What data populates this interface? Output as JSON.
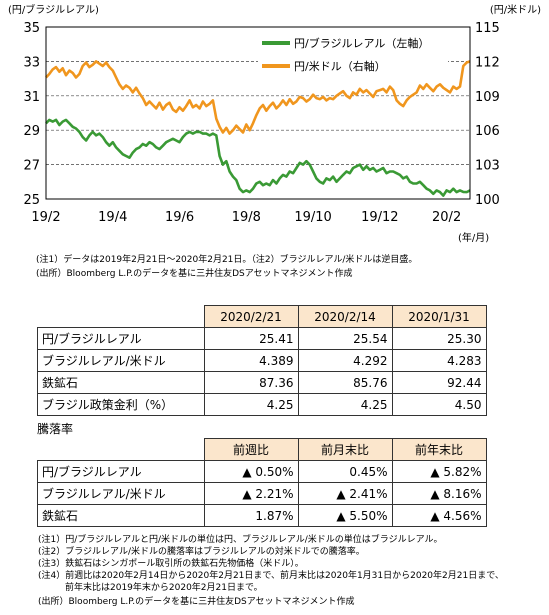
{
  "chart_data": {
    "type": "line",
    "left_axis_label": "(円/ブラジルレアル)",
    "right_axis_label": "(円/米ドル)",
    "x_unit_label": "(年/月)",
    "x_ticks": [
      "19/2",
      "19/4",
      "19/6",
      "19/8",
      "19/10",
      "19/12",
      "20/2"
    ],
    "y_left_ticks": [
      "35",
      "33",
      "31",
      "29",
      "27",
      "25"
    ],
    "y_right_ticks": [
      "115",
      "112",
      "109",
      "106",
      "103",
      "100"
    ],
    "ylim_left": [
      25,
      35
    ],
    "ylim_right": [
      100,
      115
    ],
    "y_right_inverted": false,
    "gridlines": true,
    "legend_position": "top-right",
    "series": [
      {
        "name": "円/ブラジルレアル（左軸）",
        "axis": "left",
        "color": "#3a9a35",
        "x": [
          0.0,
          0.1,
          0.2,
          0.3,
          0.4,
          0.5,
          0.6,
          0.7,
          0.8,
          0.9,
          1.0,
          1.1,
          1.2,
          1.3,
          1.4,
          1.5,
          1.6,
          1.7,
          1.8,
          1.9,
          2.0,
          2.1,
          2.2,
          2.3,
          2.4,
          2.5,
          2.6,
          2.7,
          2.8,
          2.9,
          3.0,
          3.1,
          3.2,
          3.3,
          3.4,
          3.5,
          3.6,
          3.7,
          3.8,
          3.9,
          4.0,
          4.1,
          4.2,
          4.3,
          4.4,
          4.5,
          4.6,
          4.7,
          4.8,
          4.9,
          5.0,
          5.1,
          5.2,
          5.3,
          5.4,
          5.5,
          5.6,
          5.7,
          5.8,
          5.9,
          6.0,
          6.1,
          6.2,
          6.3,
          6.4,
          6.5,
          6.6,
          6.7,
          6.8,
          6.9,
          7.0,
          7.1,
          7.2,
          7.3,
          7.4,
          7.5,
          7.6,
          7.7,
          7.8,
          7.9,
          8.0,
          8.1,
          8.2,
          8.3,
          8.4,
          8.5,
          8.6,
          8.7,
          8.8,
          8.9,
          9.0,
          9.1,
          9.2,
          9.3,
          9.4,
          9.5,
          9.6,
          9.7,
          9.8,
          9.9,
          10.0,
          10.1,
          10.2,
          10.3,
          10.4,
          10.5,
          10.6,
          10.7,
          10.8,
          10.9,
          11.0,
          11.1,
          11.2,
          11.3,
          11.4,
          11.5,
          11.6,
          11.7,
          11.8,
          11.9,
          12.0,
          12.1,
          12.2,
          12.3,
          12.4,
          12.5,
          12.6,
          12.7
        ],
        "values": [
          29.4,
          29.6,
          29.5,
          29.6,
          29.3,
          29.5,
          29.6,
          29.4,
          29.2,
          29.1,
          28.9,
          28.6,
          28.4,
          28.7,
          28.9,
          28.7,
          28.8,
          28.6,
          28.3,
          28.1,
          28.3,
          28.0,
          27.8,
          27.6,
          27.5,
          27.4,
          27.7,
          27.9,
          28.0,
          28.2,
          28.1,
          28.3,
          28.2,
          28.0,
          27.9,
          28.1,
          28.3,
          28.4,
          28.5,
          28.4,
          28.3,
          28.6,
          28.8,
          28.9,
          28.8,
          28.9,
          28.9,
          28.8,
          28.8,
          28.7,
          28.8,
          28.7,
          27.5,
          27.0,
          27.2,
          26.6,
          26.3,
          26.1,
          25.6,
          25.4,
          25.5,
          25.4,
          25.6,
          25.9,
          26.0,
          25.8,
          25.9,
          25.8,
          26.1,
          25.9,
          26.2,
          26.4,
          26.3,
          26.6,
          26.5,
          26.8,
          27.1,
          27.0,
          27.2,
          27.0,
          26.6,
          26.2,
          26.0,
          25.9,
          26.2,
          26.1,
          26.3,
          26.0,
          26.2,
          26.4,
          26.6,
          26.5,
          26.8,
          26.9,
          27.0,
          26.7,
          26.9,
          26.7,
          26.8,
          26.6,
          26.7,
          26.8,
          26.5,
          26.6,
          26.6,
          26.5,
          26.4,
          26.2,
          26.3,
          26.0,
          25.9,
          25.9,
          26.0,
          25.8,
          25.6,
          25.5,
          25.3,
          25.5,
          25.4,
          25.2,
          25.5,
          25.4,
          25.6,
          25.4,
          25.5,
          25.41,
          25.4,
          25.5
        ]
      },
      {
        "name": "円/米ドル（右軸）",
        "axis": "right",
        "color": "#f0961e",
        "x": [
          0.0,
          0.1,
          0.2,
          0.3,
          0.4,
          0.5,
          0.6,
          0.7,
          0.8,
          0.9,
          1.0,
          1.1,
          1.2,
          1.3,
          1.4,
          1.5,
          1.6,
          1.7,
          1.8,
          1.9,
          2.0,
          2.1,
          2.2,
          2.3,
          2.4,
          2.5,
          2.6,
          2.7,
          2.8,
          2.9,
          3.0,
          3.1,
          3.2,
          3.3,
          3.4,
          3.5,
          3.6,
          3.7,
          3.8,
          3.9,
          4.0,
          4.1,
          4.2,
          4.3,
          4.4,
          4.5,
          4.6,
          4.7,
          4.8,
          4.9,
          5.0,
          5.1,
          5.2,
          5.3,
          5.4,
          5.5,
          5.6,
          5.7,
          5.8,
          5.9,
          6.0,
          6.1,
          6.2,
          6.3,
          6.4,
          6.5,
          6.6,
          6.7,
          6.8,
          6.9,
          7.0,
          7.1,
          7.2,
          7.3,
          7.4,
          7.5,
          7.6,
          7.7,
          7.8,
          7.9,
          8.0,
          8.1,
          8.2,
          8.3,
          8.4,
          8.5,
          8.6,
          8.7,
          8.8,
          8.9,
          9.0,
          9.1,
          9.2,
          9.3,
          9.4,
          9.5,
          9.6,
          9.7,
          9.8,
          9.9,
          10.0,
          10.1,
          10.2,
          10.3,
          10.4,
          10.5,
          10.6,
          10.7,
          10.8,
          10.9,
          11.0,
          11.1,
          11.2,
          11.3,
          11.4,
          11.5,
          11.6,
          11.7,
          11.8,
          11.9,
          12.0,
          12.1,
          12.2,
          12.3,
          12.4,
          12.5,
          12.6,
          12.7
        ],
        "values": [
          110.6,
          110.9,
          111.3,
          111.5,
          111.1,
          111.4,
          110.8,
          111.2,
          111.0,
          110.6,
          110.9,
          111.6,
          111.9,
          111.5,
          111.7,
          112.0,
          111.8,
          111.6,
          111.9,
          111.5,
          111.2,
          110.6,
          110.0,
          109.6,
          109.9,
          109.7,
          109.3,
          109.7,
          109.2,
          108.8,
          108.2,
          108.5,
          108.2,
          107.9,
          108.4,
          107.8,
          108.2,
          108.4,
          107.8,
          107.6,
          108.0,
          107.7,
          108.1,
          108.6,
          108.0,
          108.2,
          107.9,
          108.5,
          108.1,
          108.3,
          108.6,
          107.0,
          106.3,
          105.8,
          106.2,
          105.7,
          106.0,
          106.4,
          106.1,
          105.8,
          106.5,
          106.0,
          106.6,
          107.3,
          107.9,
          108.2,
          107.7,
          108.1,
          108.4,
          107.9,
          108.2,
          108.6,
          108.2,
          108.7,
          108.3,
          108.5,
          108.9,
          108.8,
          108.5,
          108.7,
          109.1,
          108.8,
          108.7,
          108.9,
          108.6,
          108.8,
          108.7,
          109.0,
          109.2,
          109.4,
          109.0,
          108.8,
          109.3,
          109.1,
          109.6,
          109.3,
          109.5,
          109.2,
          108.9,
          109.4,
          109.5,
          109.6,
          109.3,
          109.8,
          109.5,
          108.6,
          108.3,
          108.1,
          108.6,
          108.9,
          109.1,
          109.3,
          109.9,
          109.6,
          110.0,
          109.7,
          109.4,
          109.8,
          110.0,
          109.7,
          109.5,
          109.3,
          109.8,
          109.6,
          109.8,
          111.6,
          111.9,
          112.0
        ]
      }
    ]
  },
  "chart_notes": {
    "note1": "(注1）データは2019年2月21日～2020年2月21日。（注2）ブラジルレアル/米ドルは逆目盛。",
    "source": "(出所）Bloomberg L.P.のデータを基に三井住友DSアセットマネジメント作成"
  },
  "table1": {
    "headers": [
      "2020/2/21",
      "2020/2/14",
      "2020/1/31"
    ],
    "rows": [
      {
        "label": "円/ブラジルレアル",
        "values": [
          "25.41",
          "25.54",
          "25.30"
        ]
      },
      {
        "label": "ブラジルレアル/米ドル",
        "values": [
          "4.389",
          "4.292",
          "4.283"
        ]
      },
      {
        "label": "鉄鉱石",
        "values": [
          "87.36",
          "85.76",
          "92.44"
        ]
      },
      {
        "label": "ブラジル政策金利（%）",
        "values": [
          "4.25",
          "4.25",
          "4.50"
        ]
      }
    ]
  },
  "table2": {
    "title": "騰落率",
    "headers": [
      "前週比",
      "前月末比",
      "前年末比"
    ],
    "rows": [
      {
        "label": "円/ブラジルレアル",
        "values": [
          "▲ 0.50%",
          "0.45%",
          "▲ 5.82%"
        ]
      },
      {
        "label": "ブラジルレアル/米ドル",
        "values": [
          "▲ 2.21%",
          "▲ 2.41%",
          "▲ 8.16%"
        ]
      },
      {
        "label": "鉄鉱石",
        "values": [
          "1.87%",
          "▲ 5.50%",
          "▲ 4.56%"
        ]
      }
    ]
  },
  "footnotes": [
    "(注1）円/ブラジルレアルと円/米ドルの単位は円、ブラジルレアル/米ドルの単位はブラジルレアル。",
    "(注2）ブラジルレアル/米ドルの騰落率はブラジルレアルの対米ドルでの騰落率。",
    "(注3）鉄鉱石はシンガポール取引所の鉄鉱石先物価格（米ドル）。",
    "(注4）前週比は2020年2月14日から2020年2月21日まで、前月末比は2020年1月31日から2020年2月21日まで、",
    "　　　前年末比は2019年末から2020年2月21日まで。",
    "(出所）Bloomberg L.P.のデータを基に三井住友DSアセットマネジメント作成"
  ]
}
